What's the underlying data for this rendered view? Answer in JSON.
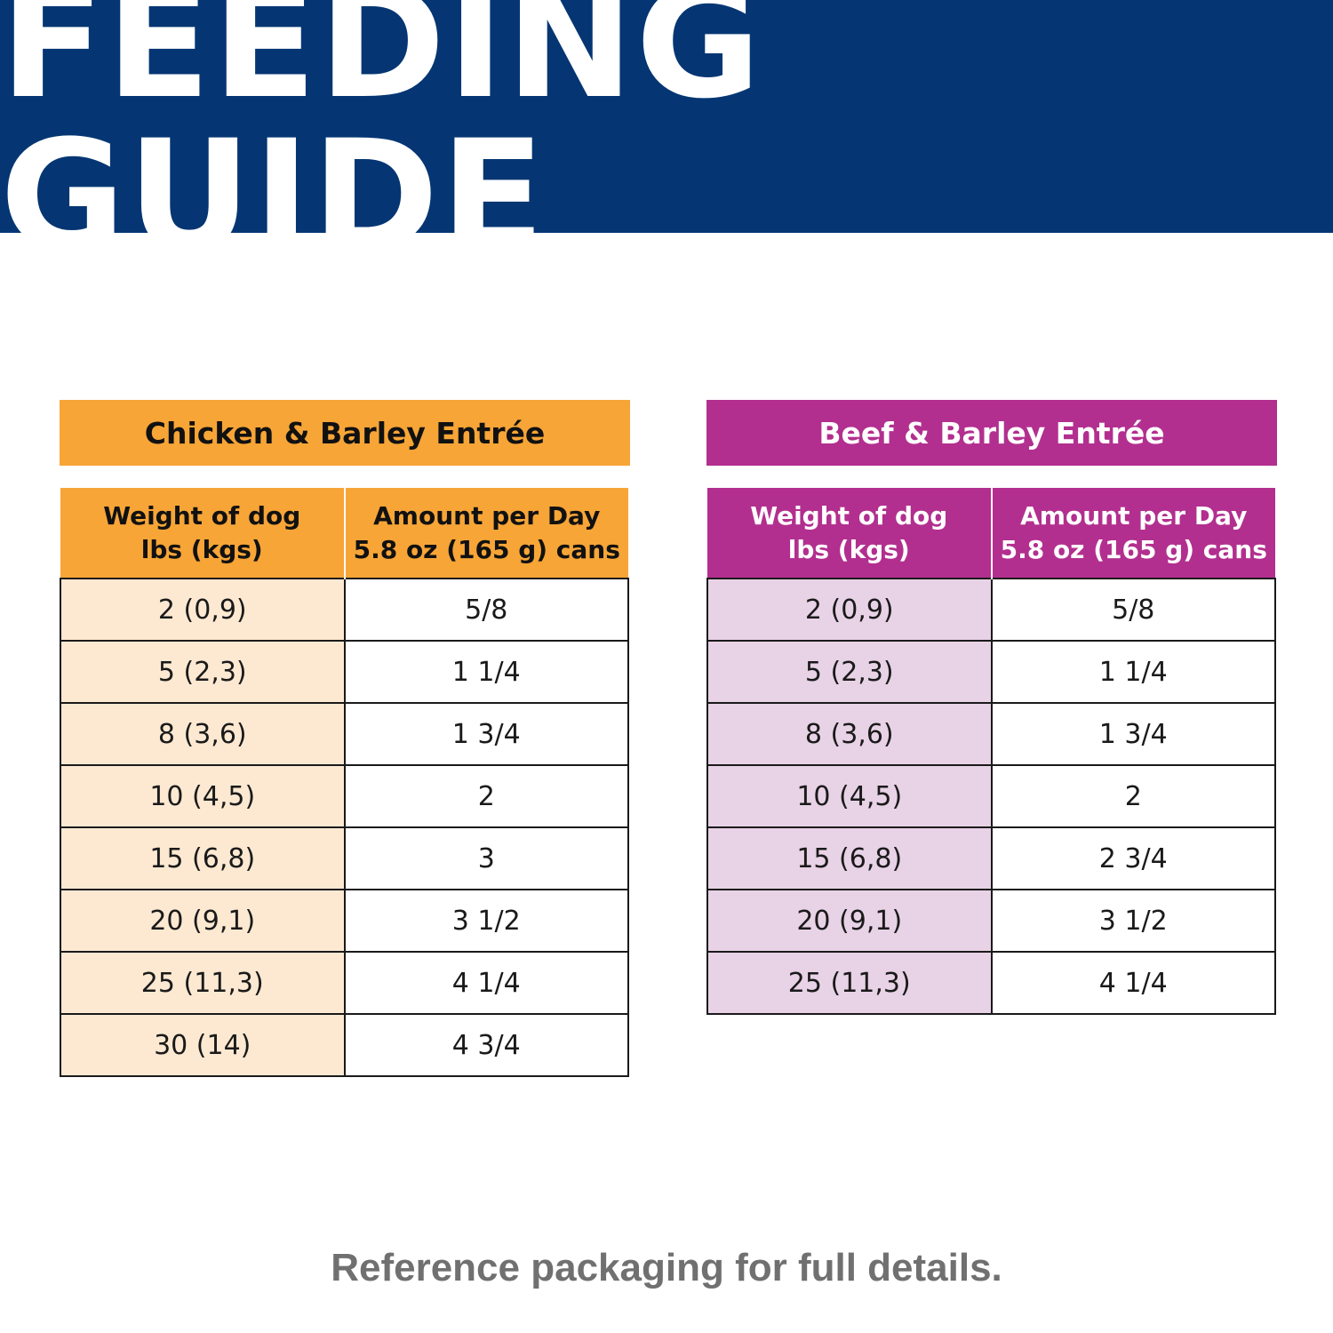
{
  "colors": {
    "banner": "#053673",
    "chicken_accent": "#f7a537",
    "chicken_light": "#fde9d2",
    "beef_accent": "#b22f8f",
    "beef_light": "#e8d2e6",
    "footer_text": "#707070"
  },
  "banner": {
    "title": "FEEDING GUIDE"
  },
  "chicken": {
    "title": "Chicken & Barley Entrée",
    "header": {
      "col1_line1": "Weight of dog",
      "col1_line2": "lbs (kgs)",
      "col2_line1": "Amount per Day",
      "col2_line2": "5.8 oz (165 g) cans"
    },
    "rows": [
      {
        "weight": "2 (0,9)",
        "amount": "5/8"
      },
      {
        "weight": "5 (2,3)",
        "amount": "1 1/4"
      },
      {
        "weight": "8 (3,6)",
        "amount": "1 3/4"
      },
      {
        "weight": "10 (4,5)",
        "amount": "2"
      },
      {
        "weight": "15 (6,8)",
        "amount": "3"
      },
      {
        "weight": "20 (9,1)",
        "amount": "3 1/2"
      },
      {
        "weight": "25 (11,3)",
        "amount": "4 1/4"
      },
      {
        "weight": "30 (14)",
        "amount": "4 3/4"
      }
    ]
  },
  "beef": {
    "title": "Beef & Barley Entrée",
    "header": {
      "col1_line1": "Weight of dog",
      "col1_line2": "lbs (kgs)",
      "col2_line1": "Amount per Day",
      "col2_line2": "5.8 oz (165 g) cans"
    },
    "rows": [
      {
        "weight": "2 (0,9)",
        "amount": "5/8"
      },
      {
        "weight": "5 (2,3)",
        "amount": "1 1/4"
      },
      {
        "weight": "8 (3,6)",
        "amount": "1 3/4"
      },
      {
        "weight": "10 (4,5)",
        "amount": "2"
      },
      {
        "weight": "15 (6,8)",
        "amount": "2 3/4"
      },
      {
        "weight": "20 (9,1)",
        "amount": "3 1/2"
      },
      {
        "weight": "25 (11,3)",
        "amount": "4 1/4"
      }
    ]
  },
  "footer": {
    "note": "Reference packaging for full details."
  }
}
